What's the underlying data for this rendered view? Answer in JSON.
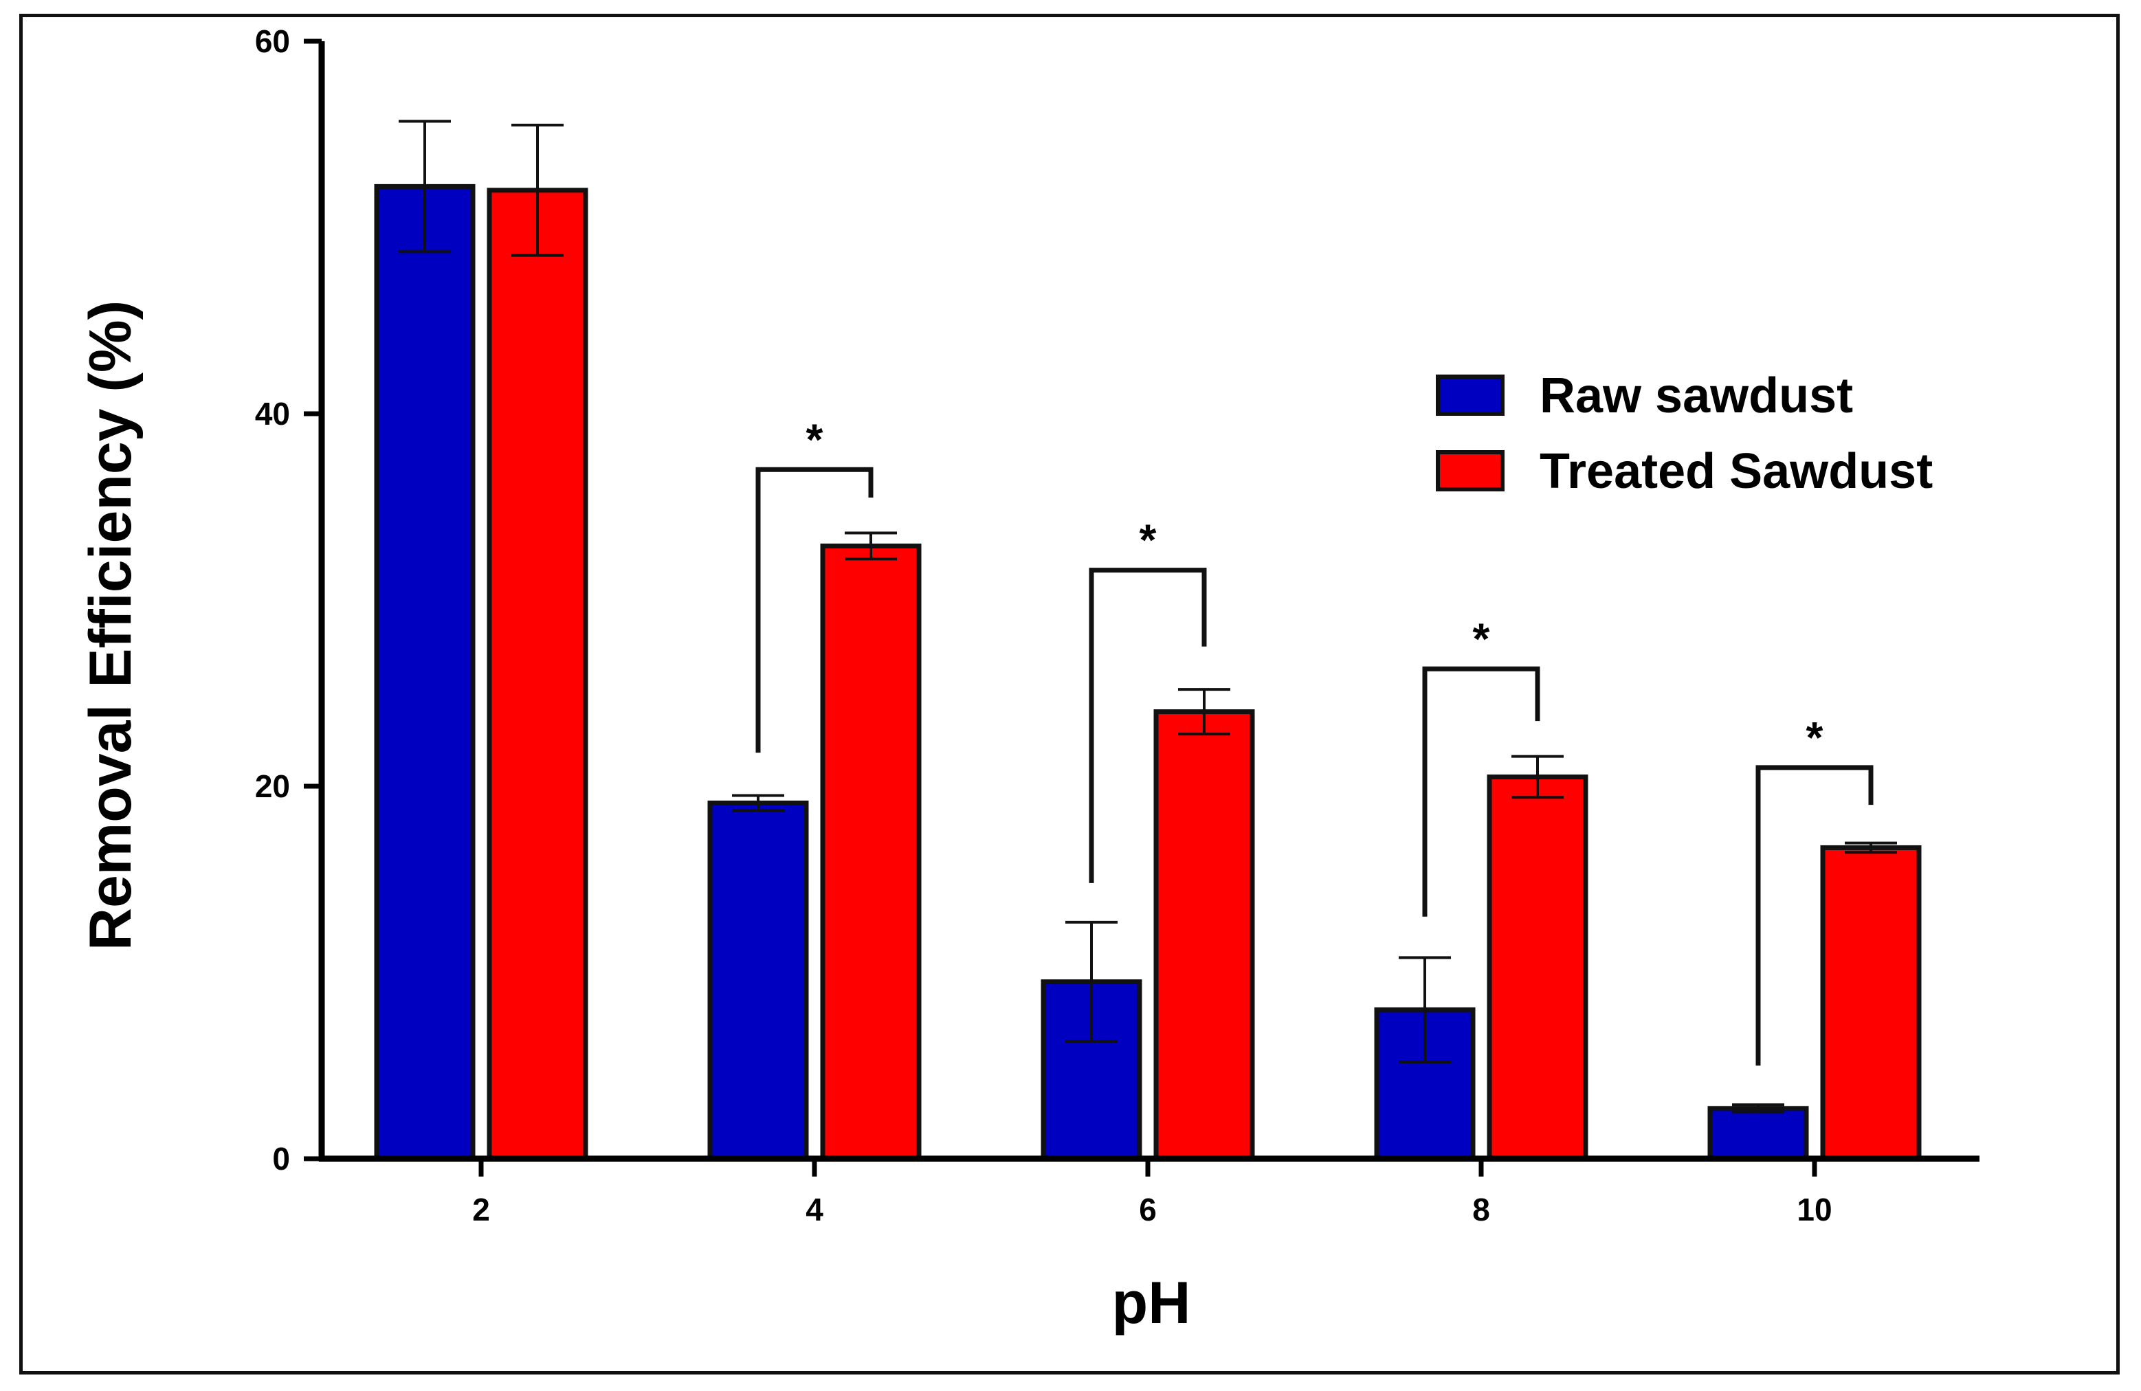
{
  "chart_data": {
    "type": "bar",
    "title": "",
    "xlabel": "pH",
    "ylabel": "Removal Efficiency (%)",
    "categories": [
      "2",
      "4",
      "6",
      "8",
      "10"
    ],
    "ylim": [
      0,
      60
    ],
    "yticks": [
      "0",
      "20",
      "40",
      "60"
    ],
    "legend_position": "right",
    "series": [
      {
        "name": "Raw sawdust",
        "color": "#0000c0",
        "values": [
          52.2,
          19.1,
          9.5,
          8.0,
          2.7
        ],
        "errors": [
          3.5,
          0.4,
          3.2,
          2.8,
          0.2
        ]
      },
      {
        "name": "Treated Sawdust",
        "color": "#ff0000",
        "values": [
          52.0,
          32.9,
          24.0,
          20.5,
          16.7
        ],
        "errors": [
          3.5,
          0.7,
          1.2,
          1.1,
          0.25
        ]
      }
    ],
    "significance": [
      {
        "category": "4",
        "label": "*",
        "bracket_top": 37.0,
        "left_leg": 21.8,
        "right_leg": 35.5
      },
      {
        "category": "6",
        "label": "*",
        "bracket_top": 31.6,
        "left_leg": 14.8,
        "right_leg": 27.5
      },
      {
        "category": "8",
        "label": "*",
        "bracket_top": 26.3,
        "left_leg": 13.0,
        "right_leg": 23.5
      },
      {
        "category": "10",
        "label": "*",
        "bracket_top": 21.0,
        "left_leg": 5.0,
        "right_leg": 19.0
      }
    ]
  }
}
